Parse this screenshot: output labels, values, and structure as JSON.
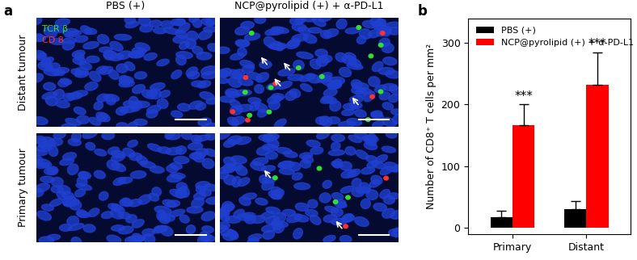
{
  "chart_data": {
    "type": "bar",
    "title": "b",
    "y_label": "Number of CD8⁺ T cells per mm²",
    "categories": [
      "Primary",
      "Distant"
    ],
    "series": [
      {
        "name": "PBS (+)",
        "color": "#000000",
        "values": [
          17,
          30
        ],
        "errors": [
          11,
          14
        ]
      },
      {
        "name": "NCP@pyrolipid (+) + α-PD-L1",
        "color": "#ff0000",
        "values": [
          167,
          232
        ],
        "errors": [
          33,
          53
        ]
      }
    ],
    "annotations": [
      {
        "text": "***",
        "category": "Primary",
        "series": "NCP@pyrolipid (+) + α-PD-L1"
      },
      {
        "text": "***",
        "category": "Distant",
        "series": "NCP@pyrolipid (+) + α-PD-L1"
      }
    ],
    "ylim": [
      -10,
      340
    ],
    "yticks": [
      0,
      100,
      200,
      300
    ],
    "legend": "upper left"
  },
  "image_panel": {
    "label": "a",
    "columns": [
      "PBS (+)",
      "NCP@pyrolipid (+) + α-PD-L1"
    ],
    "rows": [
      "Distant tumour",
      "Primary tumour"
    ],
    "stains": [
      {
        "name": "TCR β",
        "color": "#33dd33"
      },
      {
        "name": "CD 8",
        "color": "#ff3030"
      }
    ]
  }
}
